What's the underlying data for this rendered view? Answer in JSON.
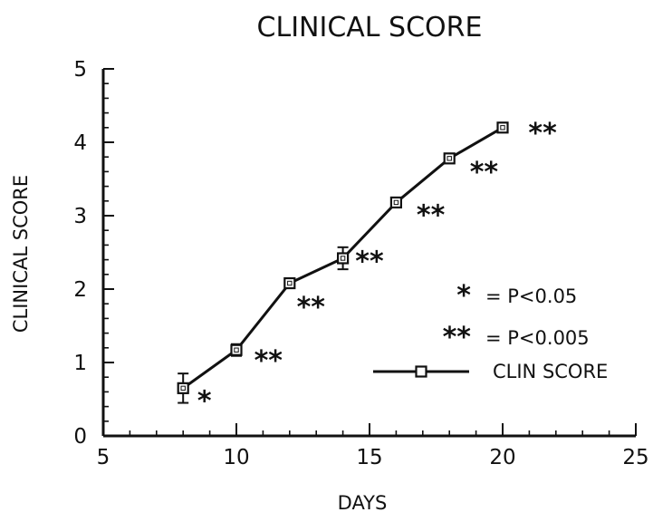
{
  "chart_data": {
    "type": "line",
    "title": "CLINICAL SCORE",
    "xlabel": "DAYS",
    "ylabel": "CLINICAL SCORE",
    "xlim": [
      5,
      25
    ],
    "ylim": [
      0,
      5
    ],
    "xticks": [
      "5",
      "10",
      "15",
      "20",
      "25"
    ],
    "yticks": [
      "0",
      "1",
      "2",
      "3",
      "4",
      "5"
    ],
    "grid": false,
    "legend_position": "right",
    "series": [
      {
        "name": "CLIN SCORE",
        "marker": "square",
        "color": "#111111",
        "points": [
          {
            "x": 8,
            "y": 0.65,
            "err": 0.2
          },
          {
            "x": 10,
            "y": 1.17,
            "err": 0.08
          },
          {
            "x": 12,
            "y": 2.08,
            "err": 0.04
          },
          {
            "x": 14,
            "y": 2.42,
            "err": 0.15
          },
          {
            "x": 16,
            "y": 3.18,
            "err": 0.05
          },
          {
            "x": 18,
            "y": 3.78,
            "err": 0.06
          },
          {
            "x": 20,
            "y": 4.2,
            "err": 0.04
          }
        ]
      }
    ],
    "significance_marks": [
      {
        "label": "*",
        "x": 8.8,
        "y": 0.5
      },
      {
        "label": "**",
        "x": 11.2,
        "y": 1.05
      },
      {
        "label": "**",
        "x": 12.8,
        "y": 1.78
      },
      {
        "label": "**",
        "x": 15.0,
        "y": 2.4
      },
      {
        "label": "**",
        "x": 17.3,
        "y": 3.03
      },
      {
        "label": "**",
        "x": 19.3,
        "y": 3.62
      },
      {
        "label": "**",
        "x": 21.5,
        "y": 4.15
      }
    ],
    "legend_notes": [
      {
        "symbol": "*",
        "text": "= P<0.05"
      },
      {
        "symbol": "**",
        "text": "= P<0.005"
      }
    ]
  }
}
